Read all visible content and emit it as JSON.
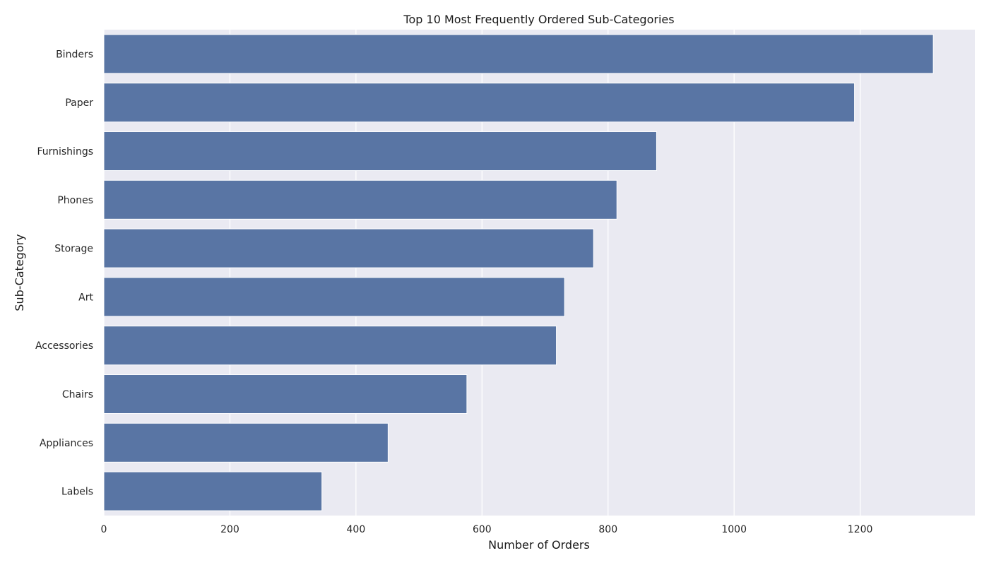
{
  "chart_data": {
    "type": "bar",
    "orientation": "horizontal",
    "title": "Top 10 Most Frequently Ordered Sub-Categories",
    "xlabel": "Number of Orders",
    "ylabel": "Sub-Category",
    "categories": [
      "Binders",
      "Paper",
      "Furnishings",
      "Phones",
      "Storage",
      "Art",
      "Accessories",
      "Chairs",
      "Appliances",
      "Labels"
    ],
    "values": [
      1316,
      1191,
      877,
      814,
      777,
      731,
      718,
      576,
      451,
      346
    ],
    "xlim": [
      0,
      1382
    ],
    "xticks": [
      0,
      200,
      400,
      600,
      800,
      1000,
      1200
    ],
    "grid": true,
    "legend": "none",
    "colors": {
      "bar": "#5975a4",
      "plot_background": "#eaeaf2",
      "grid": "#ffffff",
      "bar_edge": "#ffffff"
    }
  }
}
